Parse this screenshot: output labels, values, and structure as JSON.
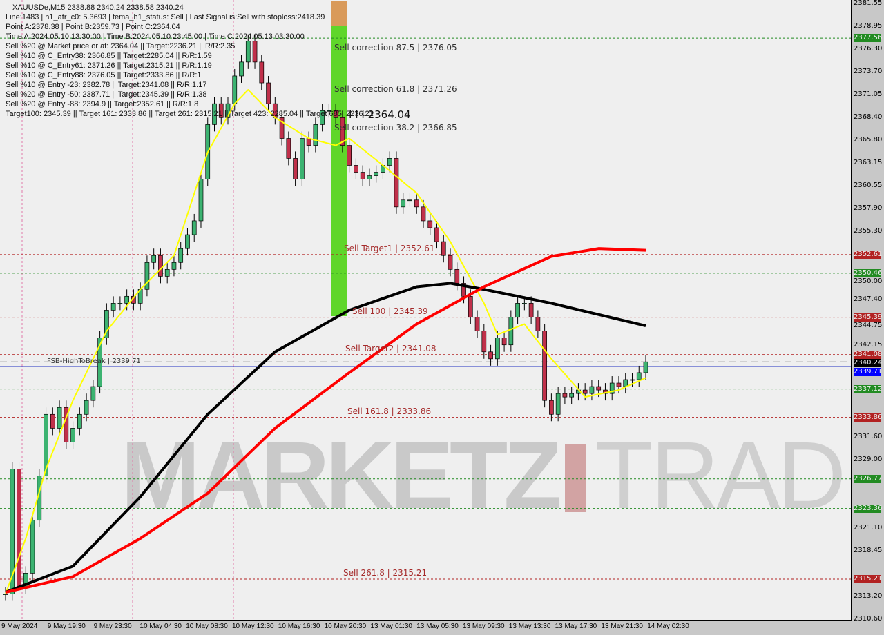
{
  "header": {
    "title": "XAUUSDe,M15  2338.88 2340.24 2338.58 2340.24",
    "lines": [
      "Line:1483 | h1_atr_c0: 5.3693 | tema_h1_status: Sell | Last Signal is:Sell with stoploss:2418.39",
      "Point A:2378.38 | Point B:2359.73 | Point C:2364.04",
      "Time A:2024.05.10 13:30:00 | Time B:2024.05.10 23:45:00 | Time C:2024.05.13 03:30:00",
      "Sell %20 @ Market price or at: 2364.04 || Target:2236.21 || R/R:2.35",
      "Sell %10 @ C_Entry38: 2366.85 || Target:2285.04 || R/R:1.59",
      "Sell %10 @ C_Entry61: 2371.26 || Target:2315.21 || R/R:1.19",
      "Sell %10 @ C_Entry88: 2376.05 || Target:2333.86 || R/R:1",
      "Sell %10 @ Entry -23: 2382.78 || Target:2341.08 || R/R:1.17",
      "Sell %20 @ Entry -50: 2387.71 || Target:2345.39 || R/R:1.38",
      "Sell %20 @ Entry -88: 2394.9 || Target:2352.61 || R/R:1.8",
      "Target100: 2345.39 || Target 161: 2333.86 || Target 261: 2315.21 || Target 423: 2285.04 || Target 685: 2236.21"
    ]
  },
  "watermark": {
    "brand": "MARKETZ",
    "suffix": "TRADE"
  },
  "chart_data": {
    "type": "candlestick",
    "symbol": "XAUUSDe",
    "timeframe": "M15",
    "ylim": [
      2310.6,
      2381.55
    ],
    "y_ticks": [
      2381.55,
      2378.95,
      2376.3,
      2373.7,
      2371.05,
      2368.4,
      2365.8,
      2363.15,
      2360.55,
      2357.9,
      2355.3,
      2350.0,
      2347.4,
      2344.75,
      2342.15,
      2331.6,
      2329.0,
      2321.1,
      2318.45,
      2313.2,
      2310.6
    ],
    "x_ticks": [
      "9 May 2024",
      "9 May 19:30",
      "9 May 23:30",
      "10 May 04:30",
      "10 May 08:30",
      "10 May 12:30",
      "10 May 16:30",
      "10 May 20:30",
      "13 May 01:30",
      "13 May 05:30",
      "13 May 09:30",
      "13 May 13:30",
      "13 May 17:30",
      "13 May 21:30",
      "14 May 02:30"
    ],
    "closes": [
      2313.5,
      2327.9,
      2314.3,
      2315.9,
      2322.0,
      2327.1,
      2334.2,
      2332.6,
      2335.0,
      2331.0,
      2332.6,
      2334.2,
      2335.8,
      2337.4,
      2343.0,
      2346.2,
      2347.0,
      2347.0,
      2347.8,
      2347.0,
      2348.6,
      2351.7,
      2352.5,
      2350.1,
      2350.9,
      2351.7,
      2353.3,
      2354.9,
      2356.5,
      2361.3,
      2367.6,
      2370.0,
      2368.4,
      2370.0,
      2373.2,
      2374.8,
      2377.2,
      2374.8,
      2372.4,
      2370.0,
      2368.4,
      2366.0,
      2363.7,
      2361.3,
      2366.0,
      2365.2,
      2367.6,
      2369.2,
      2369.2,
      2368.4,
      2365.2,
      2362.9,
      2362.1,
      2361.3,
      2361.7,
      2362.1,
      2362.9,
      2363.7,
      2358.1,
      2358.9,
      2358.9,
      2358.1,
      2356.5,
      2355.7,
      2354.1,
      2352.5,
      2350.9,
      2349.3,
      2347.8,
      2345.4,
      2343.8,
      2341.4,
      2340.6,
      2343.0,
      2342.2,
      2345.4,
      2347.0,
      2347.0,
      2345.4,
      2343.8,
      2335.8,
      2334.2,
      2336.6,
      2336.2,
      2336.6,
      2337.0,
      2336.6,
      2337.4,
      2337.0,
      2336.6,
      2337.8,
      2337.4,
      2338.2,
      2338.2,
      2339.0,
      2340.24
    ],
    "moving_averages": [
      {
        "color": "#ffff00",
        "points": [
          [
            0,
            2313.5
          ],
          [
            3,
            2319.9
          ],
          [
            6,
            2327.9
          ],
          [
            10,
            2335.8
          ],
          [
            15,
            2343.8
          ],
          [
            20,
            2348.6
          ],
          [
            25,
            2352.5
          ],
          [
            30,
            2364.4
          ],
          [
            34,
            2370.0
          ],
          [
            36,
            2371.6
          ],
          [
            40,
            2368.4
          ],
          [
            45,
            2366.0
          ],
          [
            49,
            2365.2
          ],
          [
            51,
            2366.0
          ],
          [
            56,
            2362.9
          ],
          [
            61,
            2359.7
          ],
          [
            66,
            2354.1
          ],
          [
            71,
            2347.0
          ],
          [
            73,
            2343.4
          ],
          [
            77,
            2344.6
          ],
          [
            81,
            2340.6
          ],
          [
            86,
            2336.2
          ],
          [
            91,
            2337.0
          ],
          [
            95,
            2338.4
          ]
        ]
      },
      {
        "color": "#000000",
        "points": [
          [
            0,
            2313.7
          ],
          [
            10,
            2316.7
          ],
          [
            20,
            2324.7
          ],
          [
            30,
            2334.2
          ],
          [
            40,
            2341.4
          ],
          [
            51,
            2346.2
          ],
          [
            61,
            2348.9
          ],
          [
            66,
            2349.3
          ],
          [
            71,
            2348.6
          ],
          [
            81,
            2347.0
          ],
          [
            95,
            2344.4
          ]
        ]
      },
      {
        "color": "#ff0000",
        "points": [
          [
            0,
            2313.7
          ],
          [
            10,
            2315.5
          ],
          [
            20,
            2319.9
          ],
          [
            30,
            2325.1
          ],
          [
            40,
            2332.6
          ],
          [
            51,
            2339.0
          ],
          [
            61,
            2344.6
          ],
          [
            71,
            2348.9
          ],
          [
            81,
            2352.4
          ],
          [
            88,
            2353.3
          ],
          [
            95,
            2353.1
          ]
        ]
      }
    ],
    "levels": [
      {
        "price": 2377.56,
        "tag": "2377.56",
        "color": "#228b22"
      },
      {
        "price": 2352.61,
        "tag": "2352.61",
        "color": "#b22222",
        "label": "Sell Target1 | 2352.61"
      },
      {
        "price": 2350.46,
        "tag": "2350.46",
        "color": "#228b22"
      },
      {
        "price": 2345.39,
        "tag": "2345.39",
        "color": "#b22222",
        "label": "Sell 100 | 2345.39"
      },
      {
        "price": 2341.08,
        "tag": "2341.08",
        "color": "#b22222",
        "label": "Sell Target2 | 2341.08"
      },
      {
        "price": 2340.24,
        "tag": "2340.24",
        "color": "#000000"
      },
      {
        "price": 2339.71,
        "tag": "2339.71",
        "color": "#0000ff",
        "label": "FSB-HighToBreak | 2339.71"
      },
      {
        "price": 2337.12,
        "tag": "2337.12",
        "color": "#228b22"
      },
      {
        "price": 2333.86,
        "tag": "2333.86",
        "color": "#b22222",
        "label": "Sell 161.8 | 2333.86"
      },
      {
        "price": 2326.77,
        "tag": "2326.77",
        "color": "#228b22"
      },
      {
        "price": 2323.36,
        "tag": "2323.36",
        "color": "#228b22"
      },
      {
        "price": 2315.21,
        "tag": "2315.21",
        "color": "#b22222",
        "label": "Sell  261.8 | 2315.21"
      }
    ],
    "corrections": [
      {
        "price": 2376.05,
        "label": "Sell correction 87.5 | 2376.05"
      },
      {
        "price": 2371.26,
        "label": "Sell correction 61.8 | 2371.26"
      },
      {
        "price": 2366.85,
        "label": "Sell correction 38.2 | 2366.85"
      }
    ],
    "point_c_label": "I I I 2364.04",
    "colors": {
      "bull": "#3cb371",
      "bear": "#c0304a",
      "zone": "#5fd62a",
      "zone_top": "#d99a5a"
    }
  }
}
